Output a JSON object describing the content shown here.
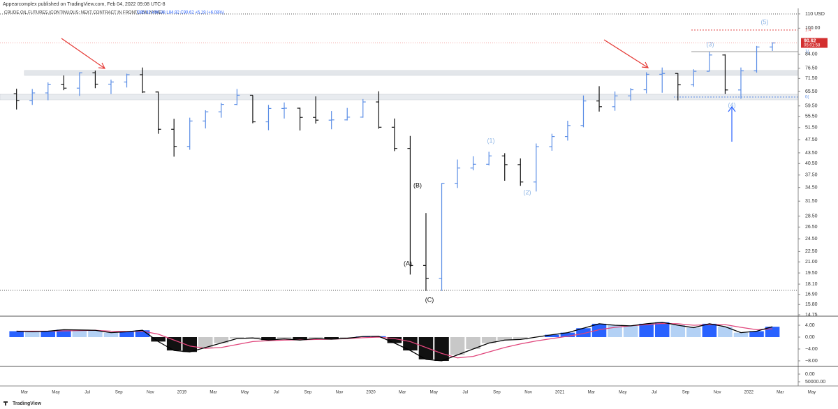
{
  "attribution": "Appearcomplex published on TradingView.com, Feb 04, 2022 09:08 UTC-8",
  "brand": "TradingView",
  "chart_data": [
    {
      "type": "ohlc",
      "title": "CRUDE OIL FUTURES (CONTINUOUS: NEXT CONTRACT IN FRONT), 1W, NYMEX",
      "ohlc_legend": "O85.92 H90.98 L84.92 C90.62 +5.19 (+6.08%)",
      "log": true,
      "up_color": "#5b8ee6",
      "down_color": "#111111",
      "categories": [
        null,
        "Mar",
        null,
        "May",
        null,
        "Jul",
        null,
        "Sep",
        null,
        "Nov",
        null,
        "2019",
        null,
        "Mar",
        null,
        "May",
        null,
        "Jul",
        null,
        "Sep",
        null,
        "Nov",
        null,
        "2020",
        null,
        "Mar",
        null,
        "May",
        null,
        "Jul",
        null,
        "Sep",
        null,
        "Nov",
        null,
        "2021",
        null,
        "Mar",
        null,
        "May",
        null,
        "Jul",
        null,
        "Sep",
        null,
        "Nov",
        null,
        "2022",
        null,
        "Mar",
        null,
        "May"
      ],
      "open": [
        64.5,
        61.6,
        64.9,
        68.6,
        67.0,
        74.2,
        68.8,
        69.8,
        73.3,
        65.3,
        50.9,
        45.4,
        53.8,
        57.2,
        60.1,
        63.9,
        53.5,
        58.5,
        58.6,
        55.1,
        54.1,
        54.2,
        55.2,
        61.1,
        51.6,
        44.8,
        20.5,
        18.8,
        35.5,
        39.3,
        40.3,
        42.6,
        40.2,
        35.8,
        45.3,
        48.5,
        52.2,
        61.5,
        59.2,
        63.6,
        66.3,
        73.5,
        73.9,
        68.5,
        75.0,
        83.6,
        66.2,
        75.2,
        88.2,
        null,
        null,
        null
      ],
      "high": [
        66.7,
        66.6,
        69.6,
        72.9,
        74.5,
        75.3,
        70.9,
        73.8,
        76.9,
        65.5,
        54.6,
        55.0,
        57.8,
        60.7,
        66.6,
        63.9,
        59.9,
        60.9,
        58.8,
        63.4,
        57.5,
        58.7,
        62.3,
        65.6,
        54.7,
        48.7,
        29.1,
        35.5,
        41.6,
        42.5,
        43.8,
        43.4,
        41.9,
        46.3,
        49.4,
        53.9,
        63.8,
        67.9,
        65.5,
        67.0,
        74.5,
        76.9,
        74.0,
        76.0,
        85.4,
        84.0,
        76.9,
        88.8,
        91.0,
        null,
        null,
        null
      ],
      "low": [
        58.1,
        59.9,
        61.8,
        66.1,
        63.6,
        67.0,
        64.4,
        67.3,
        64.9,
        49.4,
        42.4,
        44.4,
        51.2,
        55.0,
        59.8,
        53.0,
        50.6,
        54.7,
        50.5,
        52.9,
        50.9,
        54.0,
        55.0,
        51.1,
        44.0,
        19.3,
        17.3,
        17.3,
        34.4,
        38.7,
        40.0,
        36.1,
        34.9,
        33.6,
        44.1,
        47.2,
        51.6,
        57.3,
        57.6,
        61.6,
        64.7,
        65.0,
        61.7,
        67.6,
        74.9,
        64.4,
        62.4,
        74.3,
        85.9,
        null,
        null,
        null
      ],
      "close": [
        61.6,
        64.9,
        68.6,
        67.0,
        74.2,
        68.8,
        69.8,
        73.3,
        65.3,
        50.9,
        45.4,
        53.8,
        57.2,
        60.1,
        63.9,
        53.5,
        58.5,
        58.6,
        55.1,
        54.1,
        54.2,
        55.2,
        61.1,
        51.6,
        44.8,
        20.5,
        18.8,
        35.5,
        39.3,
        40.3,
        42.6,
        40.2,
        35.8,
        45.3,
        48.5,
        52.2,
        61.5,
        59.2,
        63.6,
        66.3,
        73.5,
        73.9,
        68.5,
        75.0,
        83.6,
        66.2,
        75.2,
        88.2,
        90.6,
        null,
        null,
        null
      ],
      "ylim": [
        14.75,
        113.6
      ],
      "yticks": [
        {
          "value": 110,
          "label": "110 USD"
        },
        {
          "value": 100,
          "label": "100.00"
        },
        {
          "value": 84,
          "label": "84.00"
        },
        {
          "value": 76.5,
          "label": "76.50"
        },
        {
          "value": 71.5,
          "label": "71.50"
        },
        {
          "value": 65.5,
          "label": "65.50"
        },
        {
          "value": 59.5,
          "label": "59.50"
        },
        {
          "value": 55.5,
          "label": "55.50"
        },
        {
          "value": 51.5,
          "label": "51.50"
        },
        {
          "value": 47.5,
          "label": "47.50"
        },
        {
          "value": 43.5,
          "label": "43.50"
        },
        {
          "value": 40.5,
          "label": "40.50"
        },
        {
          "value": 37.5,
          "label": "37.50"
        },
        {
          "value": 34.5,
          "label": "34.50"
        },
        {
          "value": 31.5,
          "label": "31.50"
        },
        {
          "value": 28.5,
          "label": "28.50"
        },
        {
          "value": 26.5,
          "label": "26.50"
        },
        {
          "value": 24.5,
          "label": "24.50"
        },
        {
          "value": 22.5,
          "label": "22.50"
        },
        {
          "value": 21,
          "label": "21.00"
        },
        {
          "value": 19.5,
          "label": "19.50"
        },
        {
          "value": 18.1,
          "label": "18.10"
        },
        {
          "value": 16.9,
          "label": "16.90"
        },
        {
          "value": 15.8,
          "label": "15.80"
        },
        {
          "value": 14.75,
          "label": "14.75"
        }
      ],
      "last_price": 90.62,
      "countdown": "05:01:58",
      "wave_labels": [
        "(1)",
        "(2)",
        "(3)",
        "(4)",
        "(5)",
        "(A)",
        "(B)",
        "(C)"
      ],
      "fib_labels": [
        "1.4",
        "1(",
        "0("
      ]
    },
    {
      "type": "macd",
      "macd_color": "#000000",
      "signal_color": "#e0457b",
      "macd": [
        2.0,
        1.8,
        2.0,
        2.5,
        2.4,
        2.3,
        1.5,
        1.8,
        2.3,
        -1.5,
        -4.5,
        -5.0,
        -3.5,
        -2.0,
        -0.5,
        -0.3,
        -1.0,
        -0.6,
        -1.0,
        -0.5,
        -0.7,
        -0.4,
        0.2,
        0.3,
        -2.0,
        -4.5,
        -7.5,
        -8.0,
        -6.0,
        -4.0,
        -2.0,
        -1.0,
        -0.8,
        0.0,
        0.8,
        1.5,
        3.0,
        4.5,
        4.0,
        3.8,
        4.5,
        5.0,
        4.0,
        3.2,
        4.5,
        3.5,
        1.5,
        2.0,
        3.5,
        null,
        null,
        null
      ],
      "signal": [
        2.0,
        2.0,
        2.0,
        2.1,
        2.2,
        2.3,
        2.0,
        1.9,
        2.0,
        1.0,
        -1.0,
        -3.0,
        -3.8,
        -3.5,
        -2.5,
        -1.5,
        -1.2,
        -1.0,
        -0.9,
        -0.8,
        -0.7,
        -0.5,
        -0.2,
        0.0,
        -0.5,
        -1.5,
        -3.5,
        -5.5,
        -7.0,
        -6.5,
        -5.0,
        -3.5,
        -2.3,
        -1.3,
        -0.5,
        0.3,
        1.2,
        2.5,
        3.3,
        3.8,
        4.2,
        4.6,
        4.5,
        4.0,
        4.2,
        4.2,
        3.3,
        2.5,
        2.8,
        null,
        null,
        null
      ],
      "ylim": [
        -9.88,
        7.06
      ],
      "yticks": [
        {
          "value": 4,
          "label": "4.00"
        },
        {
          "value": 0,
          "label": "0.00"
        },
        {
          "value": -4,
          "label": "−4.00"
        },
        {
          "value": -8,
          "label": "−8.00"
        }
      ]
    },
    {
      "type": "volume",
      "ylim": [
        77273,
        -50000
      ],
      "yticks": [
        {
          "value": 0,
          "label": "0.00"
        },
        {
          "value": 50000,
          "label": "50000.00"
        }
      ]
    }
  ]
}
